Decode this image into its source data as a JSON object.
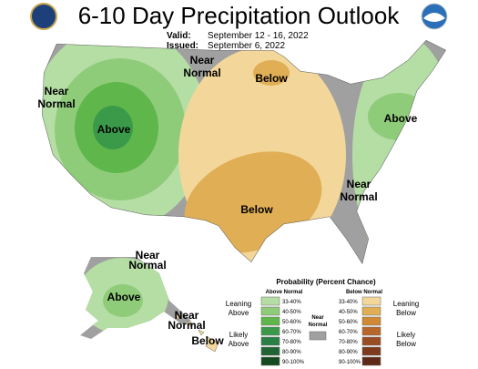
{
  "header": {
    "title": "6-10 Day Precipitation Outlook",
    "valid_label": "Valid:",
    "valid_dates": "September 12 - 16, 2022",
    "issued_label": "Issued:",
    "issued_date": "September 6, 2022"
  },
  "map_labels": [
    {
      "lines": [
        "Near",
        "Normal"
      ]
    },
    {
      "lines": [
        "Near",
        "Normal"
      ]
    },
    {
      "lines": [
        "Above"
      ]
    },
    {
      "lines": [
        "Below"
      ]
    },
    {
      "lines": [
        "Below"
      ]
    },
    {
      "lines": [
        "Near",
        "Normal"
      ]
    },
    {
      "lines": [
        "Above"
      ]
    },
    {
      "lines": [
        "Near",
        "Normal"
      ]
    },
    {
      "lines": [
        "Above"
      ]
    },
    {
      "lines": [
        "Near",
        "Normal"
      ]
    },
    {
      "lines": [
        "Below"
      ]
    }
  ],
  "legend": {
    "title": "Probability (Percent Chance)",
    "above_heading": "Above Normal",
    "below_heading": "Below Normal",
    "near_label": [
      "Near",
      "Normal"
    ],
    "above_items": [
      "33-40%",
      "40-50%",
      "50-60%",
      "60-70%",
      "70-80%",
      "80-90%",
      "90-100%"
    ],
    "below_items": [
      "33-40%",
      "40-50%",
      "50-60%",
      "60-70%",
      "70-80%",
      "80-90%",
      "90-100%"
    ],
    "leaning_above": [
      "Leaning",
      "Above"
    ],
    "likely_above": [
      "Likely",
      "Above"
    ],
    "leaning_below": [
      "Leaning",
      "Below"
    ],
    "likely_below": [
      "Likely",
      "Below"
    ]
  }
}
